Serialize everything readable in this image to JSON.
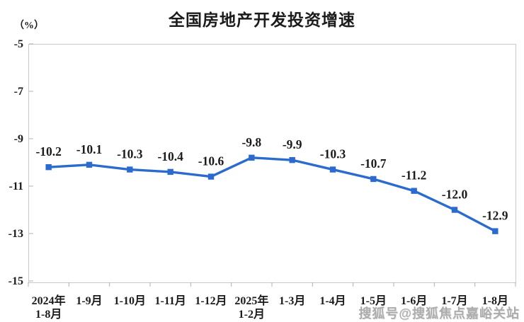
{
  "chart_data": {
    "type": "line",
    "title": "全国房地产开发投资增速",
    "unit_label": "（%）",
    "categories": [
      [
        "2024年",
        "1-8月"
      ],
      [
        "1-9月"
      ],
      [
        "1-10月"
      ],
      [
        "1-11月"
      ],
      [
        "1-12月"
      ],
      [
        "2025年",
        "1-2月"
      ],
      [
        "1-3月"
      ],
      [
        "1-4月"
      ],
      [
        "1-5月"
      ],
      [
        "1-6月"
      ],
      [
        "1-7月"
      ],
      [
        "1-8月"
      ]
    ],
    "values": [
      -10.2,
      -10.1,
      -10.3,
      -10.4,
      -10.6,
      -9.8,
      -9.9,
      -10.3,
      -10.7,
      -11.2,
      -12.0,
      -12.9
    ],
    "data_labels": [
      "-10.2",
      "-10.1",
      "-10.3",
      "-10.4",
      "-10.6",
      "-9.8",
      "-9.9",
      "-10.3",
      "-10.7",
      "-11.2",
      "-12.0",
      "-12.9"
    ],
    "yticks": [
      -5,
      -7,
      -9,
      -11,
      -13,
      -15
    ],
    "ylim": [
      -15,
      -5
    ],
    "grid": false,
    "legend_position": "none",
    "marker": "square",
    "colors": {
      "line": "#2c6bce",
      "marker": "#2c6bce",
      "axis_border": "#c9c9c9",
      "tick": "#b0b0b0",
      "text": "#1b1b1b",
      "watermark": "#a8a8a8"
    }
  },
  "watermark": {
    "text": "搜狐号@搜狐焦点嘉峪关站"
  }
}
